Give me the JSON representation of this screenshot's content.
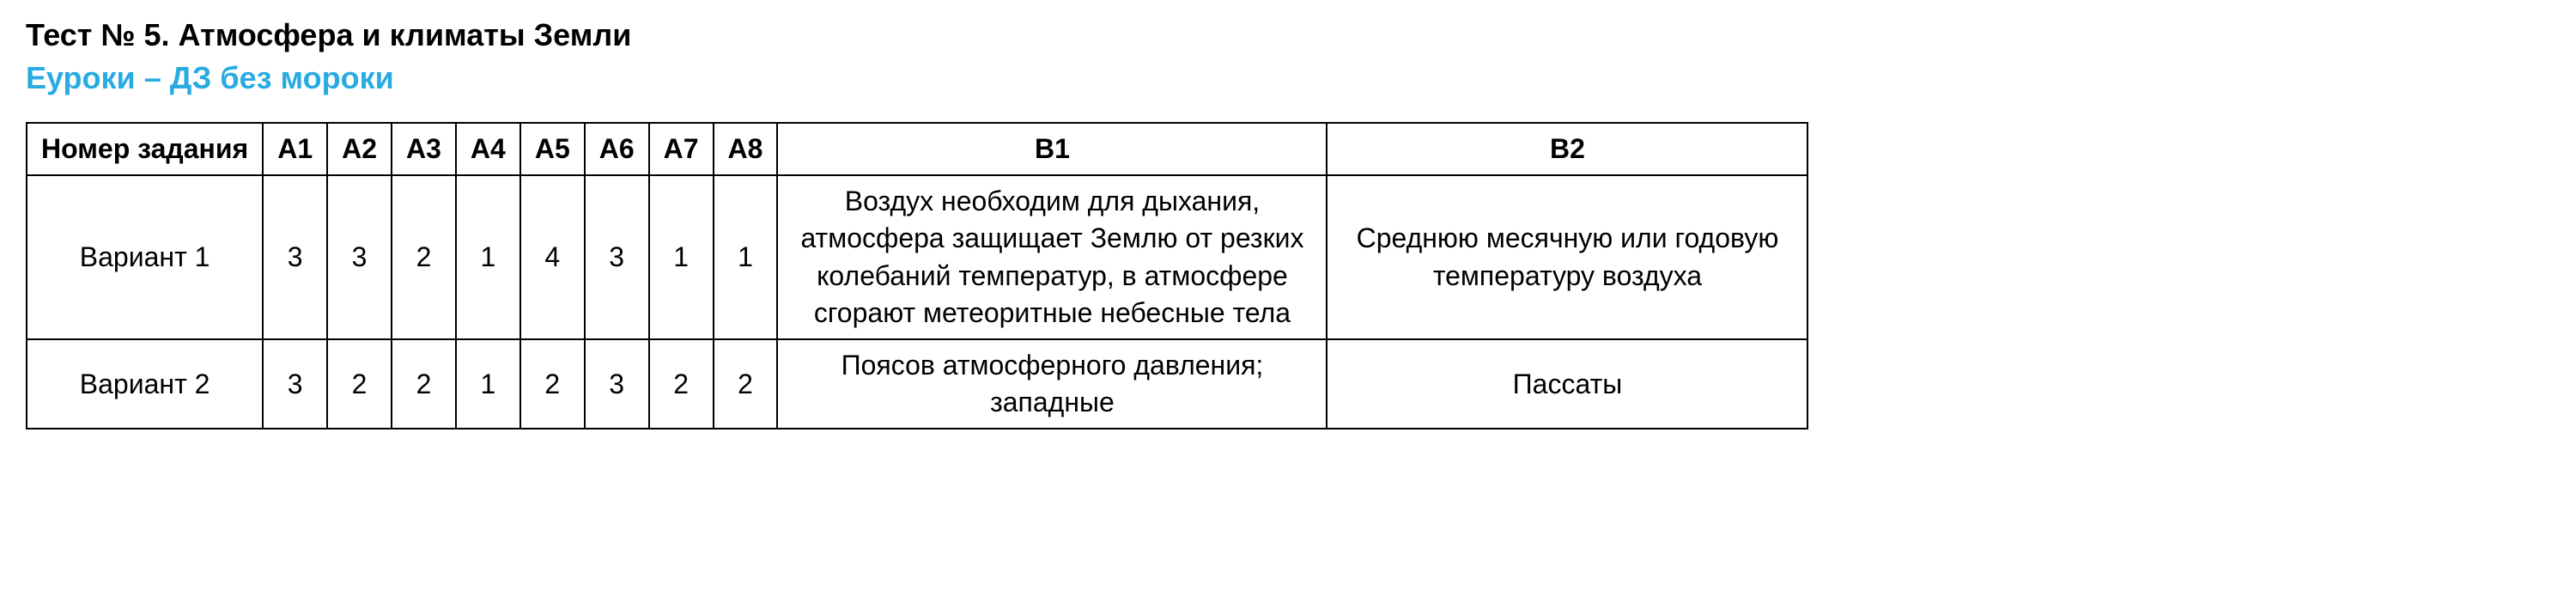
{
  "title": "Тест № 5. Атмосфера и климаты Земли",
  "subtitle": "Еуроки – ДЗ без мороки",
  "columns": {
    "task_number": "Номер задания",
    "a1": "А1",
    "a2": "А2",
    "a3": "А3",
    "a4": "А4",
    "a5": "А5",
    "a6": "А6",
    "a7": "А7",
    "a8": "А8",
    "b1": "В1",
    "b2": "В2"
  },
  "rows": [
    {
      "label": "Вариант 1",
      "a1": "3",
      "a2": "3",
      "a3": "2",
      "a4": "1",
      "a5": "4",
      "a6": "3",
      "a7": "1",
      "a8": "1",
      "b1": "Воздух необходим для дыхания, атмосфера защищает Землю от резких колебаний температур, в атмосфере сгорают метеоритные небесные тела",
      "b2": "Среднюю месячную или годовую температуру воздуха"
    },
    {
      "label": "Вариант 2",
      "a1": "3",
      "a2": "2",
      "a3": "2",
      "a4": "1",
      "a5": "2",
      "a6": "3",
      "a7": "2",
      "a8": "2",
      "b1": "Поясов атмосферного давления; западные",
      "b2": "Пассаты"
    }
  ],
  "colors": {
    "text": "#000000",
    "subtitle": "#29abe2",
    "border": "#000000",
    "background": "#ffffff"
  },
  "typography": {
    "title_fontsize": 36,
    "subtitle_fontsize": 36,
    "table_fontsize": 32,
    "font_family": "Arial"
  }
}
